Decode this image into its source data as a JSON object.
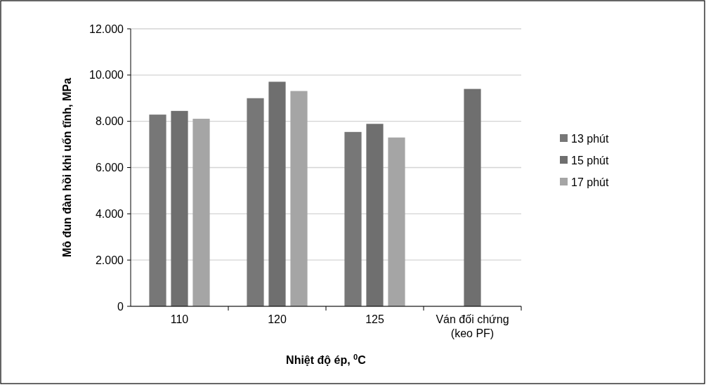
{
  "chart_data": {
    "type": "bar",
    "xlabel": "Nhiệt độ ép, $^{0}$C",
    "ylabel": "Mô đun đàn hồi khi uốn tĩnh, MPa",
    "categories": [
      "110",
      "120",
      "125",
      "Ván đối chứng (keo PF)"
    ],
    "series": [
      {
        "name": "13 phút",
        "color": "#777777",
        "values": [
          8290,
          9000,
          7540,
          null
        ]
      },
      {
        "name": "15 phút",
        "color": "#6f6f6f",
        "values": [
          8450,
          9710,
          7890,
          9400
        ]
      },
      {
        "name": "17 phút",
        "color": "#a5a5a5",
        "values": [
          8110,
          9310,
          7300,
          null
        ]
      }
    ],
    "ylim": [
      0,
      12000
    ],
    "yticks": [
      0,
      {
        "value": 2000,
        "label": "2.000"
      },
      {
        "value": 4000,
        "label": "4.000"
      },
      {
        "value": 6000,
        "label": "6.000"
      },
      {
        "value": 8000,
        "label": "8.000"
      },
      {
        "value": 10000,
        "label": "10.000"
      },
      {
        "value": 12000,
        "label": "12.000"
      }
    ],
    "grid": "y",
    "legend": "right"
  }
}
